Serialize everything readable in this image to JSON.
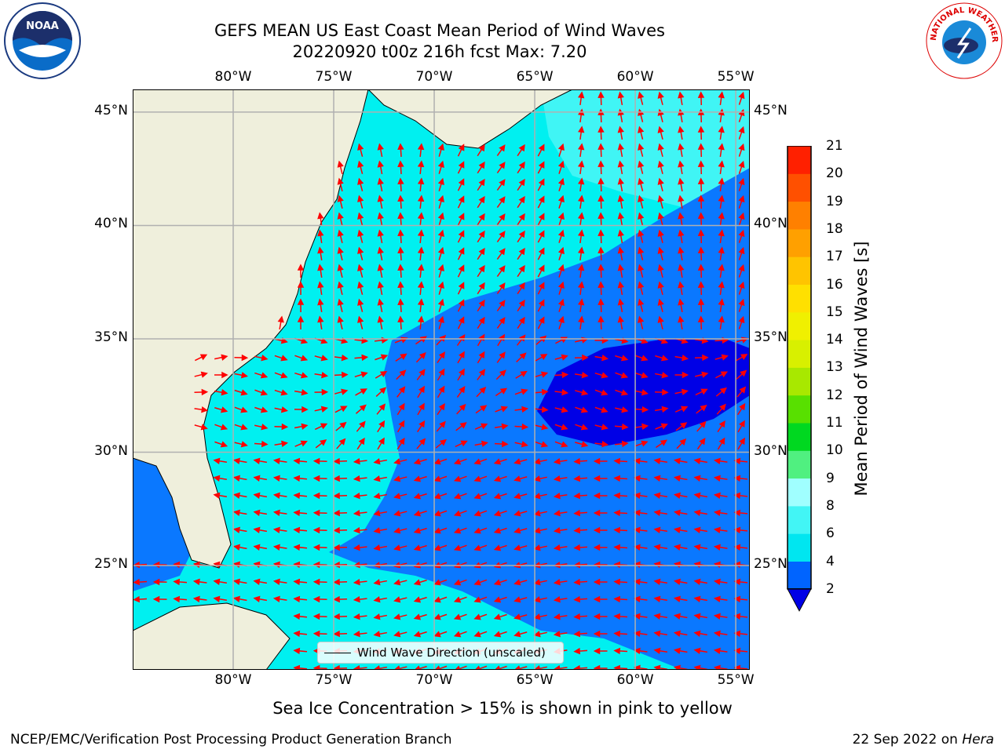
{
  "title": {
    "line1": "GEFS MEAN US East Coast Mean Period of Wind Waves",
    "line2": "20220920 t00z 216h fcst   Max: 7.20"
  },
  "map": {
    "lon_labels": [
      "80°W",
      "75°W",
      "70°W",
      "65°W",
      "60°W",
      "55°W"
    ],
    "lat_labels": [
      "45°N",
      "40°N",
      "35°N",
      "30°N",
      "25°N"
    ],
    "lon_values": [
      -80,
      -75,
      -70,
      -65,
      -60,
      -55
    ],
    "lat_values": [
      45,
      40,
      35,
      30,
      25
    ],
    "extent": {
      "lon": [
        -85,
        -54.3
      ],
      "lat": [
        20.4,
        46
      ]
    },
    "land_color": "#efefdc",
    "grid": true
  },
  "colorbar": {
    "label": "Mean Period of Wind Waves [s]",
    "ticks": [
      "2",
      "4",
      "6",
      "8",
      "9",
      "10",
      "11",
      "12",
      "13",
      "14",
      "15",
      "16",
      "17",
      "18",
      "19",
      "20",
      "21"
    ],
    "levels": [
      2,
      4,
      6,
      8,
      9,
      10,
      11,
      12,
      13,
      14,
      15,
      16,
      17,
      18,
      19,
      20,
      21
    ],
    "colors": [
      "#0064ff",
      "#00e6f0",
      "#42f5f5",
      "#a0ffff",
      "#50f080",
      "#00d820",
      "#58e000",
      "#a8e800",
      "#d8f000",
      "#f0f000",
      "#ffe000",
      "#ffc400",
      "#ffa000",
      "#ff8000",
      "#ff5000",
      "#ff2000",
      "#ff0000"
    ],
    "under_color": "#0000e6",
    "extend": "min"
  },
  "legend": {
    "label": "Wind Wave Direction (unscaled)"
  },
  "note": "Sea Ice Concentration > 15% is shown in pink to yellow",
  "footer": {
    "left": "NCEP/EMC/Verification Post Processing Product Generation Branch",
    "right_date": "22 Sep 2022 on ",
    "right_host": "Hera"
  },
  "logos": {
    "left": "NOAA",
    "right": "NATIONAL WEATHER SERVICE"
  }
}
